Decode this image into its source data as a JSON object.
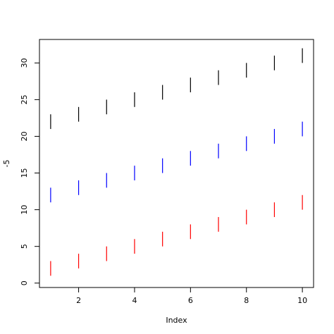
{
  "chart_data": {
    "type": "segments",
    "xlabel": "Index",
    "ylabel": "-5",
    "xlim": [
      0.6,
      10.4
    ],
    "ylim": [
      -0.6,
      33.2
    ],
    "xticks": [
      2,
      4,
      6,
      8,
      10
    ],
    "yticks": [
      0,
      5,
      10,
      15,
      20,
      25,
      30
    ],
    "grid": false,
    "series": [
      {
        "color": "#ff0000",
        "x": [
          1,
          2,
          3,
          4,
          5,
          6,
          7,
          8,
          9,
          10
        ],
        "y_start": [
          1,
          2,
          3,
          4,
          5,
          6,
          7,
          8,
          9,
          10
        ],
        "y_end": [
          3,
          4,
          5,
          6,
          7,
          8,
          9,
          10,
          11,
          12
        ]
      },
      {
        "color": "#0000ff",
        "x": [
          1,
          2,
          3,
          4,
          5,
          6,
          7,
          8,
          9,
          10
        ],
        "y_start": [
          11,
          12,
          13,
          14,
          15,
          16,
          17,
          18,
          19,
          20
        ],
        "y_end": [
          13,
          14,
          15,
          16,
          17,
          18,
          19,
          20,
          21,
          22
        ]
      },
      {
        "color": "#000000",
        "x": [
          1,
          2,
          3,
          4,
          5,
          6,
          7,
          8,
          9,
          10
        ],
        "y_start": [
          21,
          22,
          23,
          24,
          25,
          26,
          27,
          28,
          29,
          30
        ],
        "y_end": [
          23,
          24,
          25,
          26,
          27,
          28,
          29,
          30,
          31,
          32
        ]
      }
    ]
  }
}
